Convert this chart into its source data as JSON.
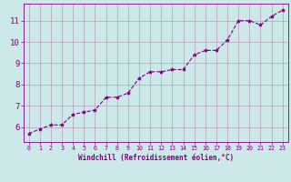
{
  "x": [
    0,
    1,
    2,
    3,
    4,
    5,
    6,
    7,
    8,
    9,
    10,
    11,
    12,
    13,
    14,
    15,
    16,
    17,
    18,
    19,
    20,
    21,
    22,
    23
  ],
  "y": [
    5.7,
    5.9,
    6.1,
    6.1,
    6.6,
    6.7,
    6.8,
    7.4,
    7.4,
    7.6,
    8.3,
    8.6,
    8.6,
    8.7,
    8.7,
    9.4,
    9.6,
    9.6,
    10.1,
    11.0,
    11.0,
    10.8,
    11.2,
    11.5
  ],
  "line_color": "#800080",
  "marker": "*",
  "marker_color": "#800080",
  "marker_size": 3,
  "bg_color": "#cce8e8",
  "grid_color": "#b090b0",
  "xlabel": "Windchill (Refroidissement éolien,°C)",
  "xlabel_color": "#800080",
  "tick_color": "#800080",
  "ylim": [
    5.3,
    11.8
  ],
  "xlim": [
    -0.5,
    23.5
  ],
  "yticks": [
    6,
    7,
    8,
    9,
    10,
    11
  ],
  "xticks": [
    0,
    1,
    2,
    3,
    4,
    5,
    6,
    7,
    8,
    9,
    10,
    11,
    12,
    13,
    14,
    15,
    16,
    17,
    18,
    19,
    20,
    21,
    22,
    23
  ],
  "spine_color": "#800080",
  "linewidth": 0.8,
  "xlabel_fontsize": 5.5,
  "xtick_fontsize": 4.8,
  "ytick_fontsize": 6.5
}
